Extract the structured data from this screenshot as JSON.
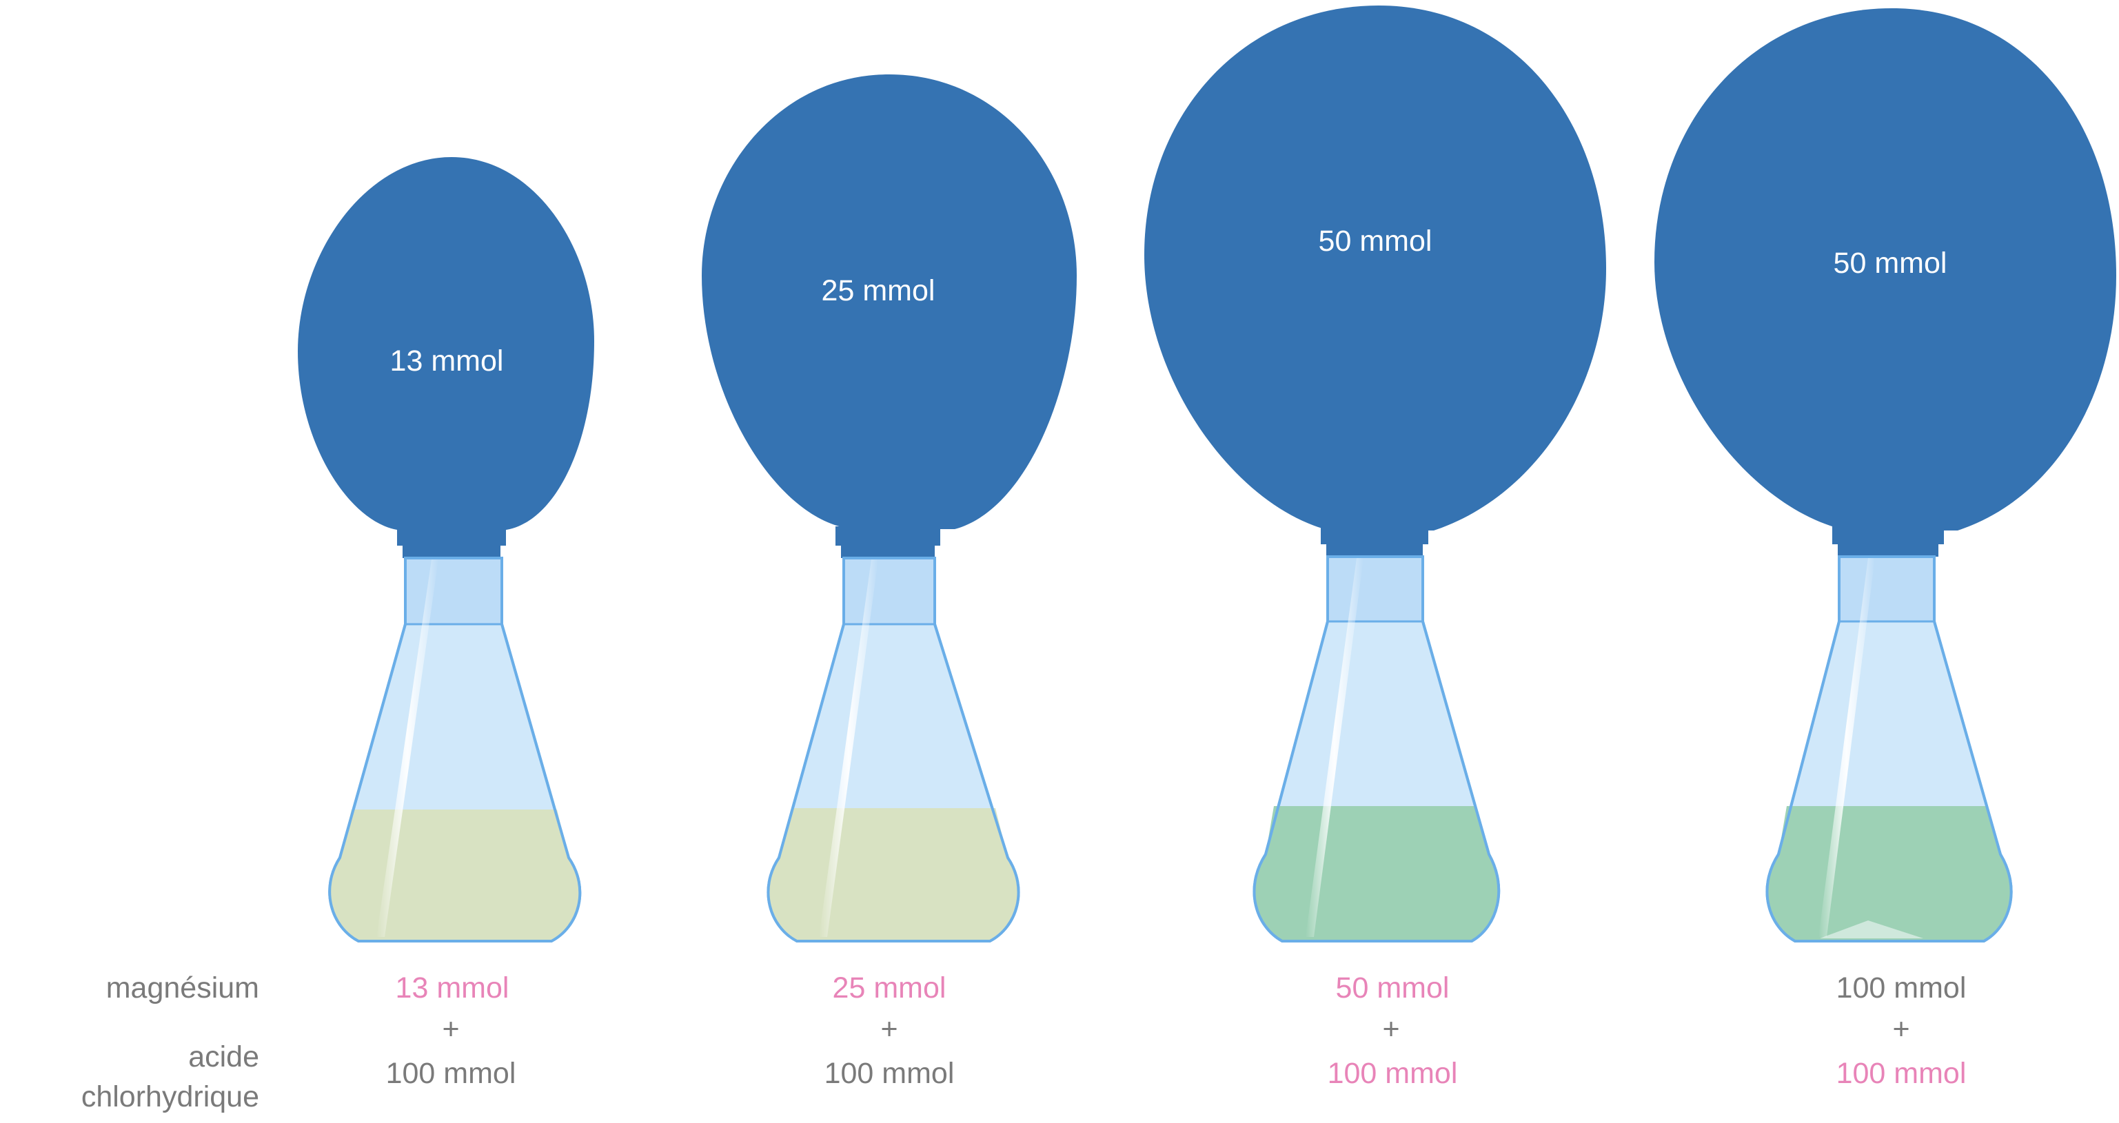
{
  "colors": {
    "balloon": "#3573b2",
    "balloon_text": "#ffffff",
    "glass_fill": "#d0e8fa",
    "glass_stroke": "#6aaee8",
    "solution_yellow": "#d8e2c2",
    "solution_green": "#9dd1b5",
    "label_gray": "#7a7a7a",
    "label_pink": "#e884b8"
  },
  "row_labels": {
    "magnesium": "magnésium",
    "acid_line1": "acide",
    "acid_line2": "chlorhydrique"
  },
  "flasks": [
    {
      "gas": "13 mmol",
      "magnesium": "13 mmol",
      "magnesium_limiting": true,
      "plus": "+",
      "acid": "100 mmol",
      "acid_limiting": false,
      "solution": "yellow",
      "residue": false
    },
    {
      "gas": "25 mmol",
      "magnesium": "25 mmol",
      "magnesium_limiting": true,
      "plus": "+",
      "acid": "100 mmol",
      "acid_limiting": false,
      "solution": "yellow",
      "residue": false
    },
    {
      "gas": "50 mmol",
      "magnesium": "50 mmol",
      "magnesium_limiting": true,
      "plus": "+",
      "acid": "100 mmol",
      "acid_limiting": true,
      "solution": "green",
      "residue": false
    },
    {
      "gas": "50 mmol",
      "magnesium": "100 mmol",
      "magnesium_limiting": false,
      "plus": "+",
      "acid": "100 mmol",
      "acid_limiting": true,
      "solution": "green",
      "residue": true
    }
  ]
}
